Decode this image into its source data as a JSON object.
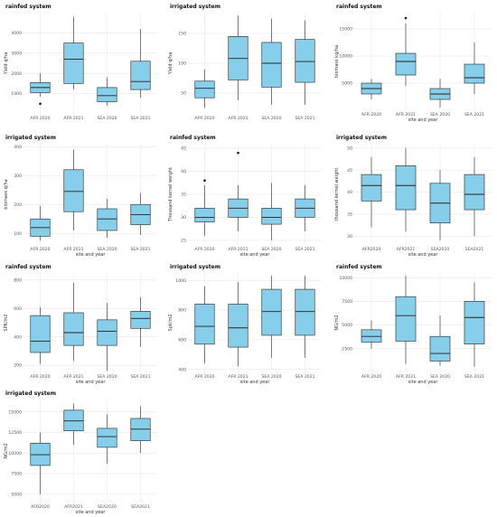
{
  "colors": {
    "box_fill": "#87ceeb",
    "box_stroke": "#222222",
    "grid": "#e6e6e6",
    "outlier": "#111111"
  },
  "chart_data": [
    {
      "type": "box",
      "title": "rainfed system",
      "xlabel": "",
      "ylabel": "Yield q/ha",
      "categories": [
        "AFR 2020",
        "AFR 2021",
        "SEA 2020",
        "SEA 2021"
      ],
      "ylim": [
        0,
        5000
      ],
      "yticks": [
        1000,
        2000,
        3000,
        4000
      ],
      "boxes": [
        {
          "category": "AFR 2020",
          "min": 850,
          "q1": 1050,
          "median": 1300,
          "q3": 1550,
          "max": 2000,
          "outliers": [
            500
          ]
        },
        {
          "category": "AFR 2021",
          "min": 1200,
          "q1": 1500,
          "median": 2700,
          "q3": 3500,
          "max": 4800,
          "outliers": []
        },
        {
          "category": "SEA 2020",
          "min": 400,
          "q1": 600,
          "median": 900,
          "q3": 1300,
          "max": 1800,
          "outliers": []
        },
        {
          "category": "SEA 2021",
          "min": 800,
          "q1": 1200,
          "median": 1600,
          "q3": 2600,
          "max": 4200,
          "outliers": []
        }
      ]
    },
    {
      "type": "box",
      "title": "irrigated system",
      "xlabel": "",
      "ylabel": "Yield q/ha",
      "categories": [
        "AFR 2020",
        "AFR 2021",
        "SEA 2020",
        "SEA 2021"
      ],
      "ylim": [
        15,
        185
      ],
      "yticks": [
        50,
        100,
        150
      ],
      "boxes": [
        {
          "category": "AFR 2020",
          "min": 25,
          "q1": 42,
          "median": 58,
          "q3": 70,
          "max": 90,
          "outliers": []
        },
        {
          "category": "AFR 2021",
          "min": 38,
          "q1": 72,
          "median": 108,
          "q3": 145,
          "max": 180,
          "outliers": []
        },
        {
          "category": "SEA 2020",
          "min": 30,
          "q1": 60,
          "median": 100,
          "q3": 135,
          "max": 175,
          "outliers": []
        },
        {
          "category": "SEA 2021",
          "min": 30,
          "q1": 68,
          "median": 103,
          "q3": 140,
          "max": 172,
          "outliers": []
        }
      ]
    },
    {
      "type": "box",
      "title": "rainfed system",
      "xlabel": "site and year",
      "ylabel": "biomass kg/ha",
      "categories": [
        "AFR 2020",
        "AFR 2021",
        "SEA 2020",
        "SEA 2021"
      ],
      "ylim": [
        0,
        18000
      ],
      "yticks": [
        5000,
        10000,
        15000
      ],
      "boxes": [
        {
          "category": "AFR 2020",
          "min": 2000,
          "q1": 3000,
          "median": 4000,
          "q3": 5000,
          "max": 5800,
          "outliers": []
        },
        {
          "category": "AFR 2021",
          "min": 4500,
          "q1": 6500,
          "median": 9000,
          "q3": 10500,
          "max": 16000,
          "outliers": [
            17000
          ]
        },
        {
          "category": "SEA 2020",
          "min": 500,
          "q1": 2000,
          "median": 3000,
          "q3": 4000,
          "max": 5800,
          "outliers": []
        },
        {
          "category": "SEA 2021",
          "min": 3000,
          "q1": 5000,
          "median": 6000,
          "q3": 8500,
          "max": 12500,
          "outliers": []
        }
      ]
    },
    {
      "type": "box",
      "title": "irrigated system",
      "xlabel": "site and year",
      "ylabel": "biomass q/ha",
      "categories": [
        "AFR 2020",
        "AFR 2021",
        "SEA 2020",
        "SEA 2021"
      ],
      "ylim": [
        60,
        410
      ],
      "yticks": [
        100,
        200,
        300,
        400
      ],
      "boxes": [
        {
          "category": "AFR 2020",
          "min": 75,
          "q1": 90,
          "median": 120,
          "q3": 150,
          "max": 195,
          "outliers": []
        },
        {
          "category": "AFR 2021",
          "min": 110,
          "q1": 175,
          "median": 245,
          "q3": 320,
          "max": 390,
          "outliers": []
        },
        {
          "category": "SEA 2020",
          "min": 85,
          "q1": 110,
          "median": 150,
          "q3": 185,
          "max": 220,
          "outliers": []
        },
        {
          "category": "SEA 2021",
          "min": 95,
          "q1": 130,
          "median": 165,
          "q3": 200,
          "max": 240,
          "outliers": []
        }
      ]
    },
    {
      "type": "box",
      "title": "rainfed system",
      "xlabel": "site and year",
      "ylabel": "Thousand kernel weight",
      "categories": [
        "AFR 2020",
        "AFR 2021",
        "SEA 2020",
        "SEA 2021"
      ],
      "ylim": [
        24,
        46
      ],
      "yticks": [
        25,
        30,
        35,
        40,
        45
      ],
      "boxes": [
        {
          "category": "AFR 2020",
          "min": 26,
          "q1": 29,
          "median": 30,
          "q3": 32,
          "max": 37,
          "outliers": [
            38
          ]
        },
        {
          "category": "AFR 2021",
          "min": 27,
          "q1": 30,
          "median": 32,
          "q3": 34,
          "max": 37,
          "outliers": [
            44
          ]
        },
        {
          "category": "SEA 2020",
          "min": 25,
          "q1": 28.5,
          "median": 30,
          "q3": 32,
          "max": 37.5,
          "outliers": []
        },
        {
          "category": "SEA 2021",
          "min": 27,
          "q1": 30,
          "median": 32,
          "q3": 34,
          "max": 37,
          "outliers": []
        }
      ]
    },
    {
      "type": "box",
      "title": "irrigated system",
      "xlabel": "site and year",
      "ylabel": "thousand kernel weight",
      "categories": [
        "AFR2020",
        "AFR2021",
        "SEA2020",
        "SEA2021"
      ],
      "ylim": [
        28,
        51
      ],
      "yticks": [
        30,
        35,
        40,
        45,
        50
      ],
      "boxes": [
        {
          "category": "AFR2020",
          "min": 32,
          "q1": 38,
          "median": 41.5,
          "q3": 44,
          "max": 48,
          "outliers": []
        },
        {
          "category": "AFR2021",
          "min": 31,
          "q1": 36,
          "median": 41.5,
          "q3": 46,
          "max": 50,
          "outliers": []
        },
        {
          "category": "SEA2020",
          "min": 29,
          "q1": 33,
          "median": 37.5,
          "q3": 42,
          "max": 45,
          "outliers": []
        },
        {
          "category": "SEA2021",
          "min": 30,
          "q1": 36,
          "median": 39.5,
          "q3": 44,
          "max": 48,
          "outliers": []
        }
      ]
    },
    {
      "type": "box",
      "title": "rainfed system",
      "xlabel": "site and year",
      "ylabel": "SPK/m2",
      "categories": [
        "AFR 2020",
        "AFR 2021",
        "SEA 2020",
        "SEA 2021"
      ],
      "ylim": [
        150,
        850
      ],
      "yticks": [
        200,
        400,
        600,
        800
      ],
      "boxes": [
        {
          "category": "AFR 2020",
          "min": 210,
          "q1": 290,
          "median": 370,
          "q3": 550,
          "max": 610,
          "outliers": []
        },
        {
          "category": "AFR 2021",
          "min": 230,
          "q1": 340,
          "median": 430,
          "q3": 570,
          "max": 780,
          "outliers": []
        },
        {
          "category": "SEA 2020",
          "min": 160,
          "q1": 340,
          "median": 440,
          "q3": 520,
          "max": 640,
          "outliers": []
        },
        {
          "category": "SEA 2021",
          "min": 330,
          "q1": 460,
          "median": 530,
          "q3": 580,
          "max": 680,
          "outliers": []
        }
      ]
    },
    {
      "type": "box",
      "title": "irrigated system",
      "xlabel": "site and year",
      "ylabel": "Spk/m2",
      "categories": [
        "AFR 2020",
        "AFR 2021",
        "SEA 2020",
        "SEA 2021"
      ],
      "ylim": [
        380,
        1050
      ],
      "yticks": [
        400,
        600,
        800,
        1000
      ],
      "boxes": [
        {
          "category": "AFR 2020",
          "min": 440,
          "q1": 570,
          "median": 690,
          "q3": 840,
          "max": 960,
          "outliers": []
        },
        {
          "category": "AFR 2021",
          "min": 420,
          "q1": 550,
          "median": 680,
          "q3": 840,
          "max": 990,
          "outliers": []
        },
        {
          "category": "SEA 2020",
          "min": 480,
          "q1": 630,
          "median": 790,
          "q3": 940,
          "max": 1030,
          "outliers": []
        },
        {
          "category": "SEA 2021",
          "min": 480,
          "q1": 630,
          "median": 790,
          "q3": 940,
          "max": 1030,
          "outliers": []
        }
      ]
    },
    {
      "type": "box",
      "title": "rainfed system",
      "xlabel": "site and year",
      "ylabel": "NG/m2",
      "categories": [
        "AFR 2020",
        "AFR 2021",
        "SEA 2020",
        "SEA 2021"
      ],
      "ylim": [
        0,
        10500
      ],
      "yticks": [
        2500,
        5000,
        7500,
        10000
      ],
      "boxes": [
        {
          "category": "AFR 2020",
          "min": 2500,
          "q1": 3200,
          "median": 3800,
          "q3": 4500,
          "max": 5500,
          "outliers": []
        },
        {
          "category": "AFR 2021",
          "min": 900,
          "q1": 3300,
          "median": 6000,
          "q3": 8000,
          "max": 10200,
          "outliers": []
        },
        {
          "category": "SEA 2020",
          "min": 700,
          "q1": 1200,
          "median": 2000,
          "q3": 3800,
          "max": 6000,
          "outliers": []
        },
        {
          "category": "SEA 2021",
          "min": 600,
          "q1": 3000,
          "median": 5800,
          "q3": 7500,
          "max": 9500,
          "outliers": []
        }
      ]
    },
    {
      "type": "box",
      "title": "irrigated system",
      "xlabel": "site and year",
      "ylabel": "NG/m2",
      "categories": [
        "AFR2020",
        "AFR2021",
        "SEA2020",
        "SEA2021"
      ],
      "ylim": [
        4000,
        16500
      ],
      "yticks": [
        5000,
        7500,
        10000,
        12500,
        15000
      ],
      "boxes": [
        {
          "category": "AFR2020",
          "min": 5000,
          "q1": 8500,
          "median": 9800,
          "q3": 11200,
          "max": 12500,
          "outliers": []
        },
        {
          "category": "AFR2021",
          "min": 11000,
          "q1": 12700,
          "median": 13900,
          "q3": 15200,
          "max": 16000,
          "outliers": []
        },
        {
          "category": "SEA2020",
          "min": 8700,
          "q1": 10700,
          "median": 12000,
          "q3": 13000,
          "max": 14700,
          "outliers": []
        },
        {
          "category": "SEA2021",
          "min": 10000,
          "q1": 11500,
          "median": 12900,
          "q3": 14200,
          "max": 15700,
          "outliers": []
        }
      ]
    }
  ]
}
